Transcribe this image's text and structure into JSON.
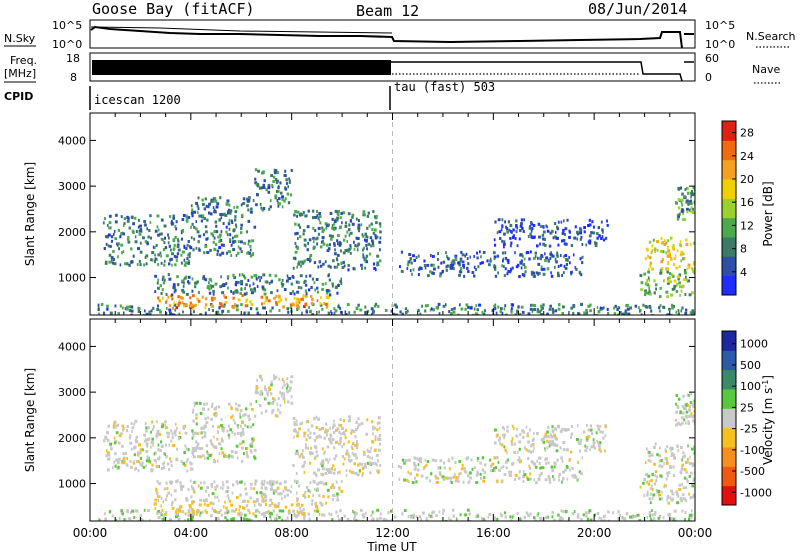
{
  "header": {
    "station": "Goose Bay (fitACF)",
    "beam": "Beam 12",
    "date": "08/Jun/2014"
  },
  "params": {
    "nsky_label": "N.Sky",
    "nsky_ticks": [
      "10^5",
      "10^0"
    ],
    "nsearch_label": "N.Search",
    "nsearch_ticks": [
      "10^5",
      "10^0"
    ],
    "freq_label": "Freq.",
    "freq_unit": "[MHz]",
    "freq_ticks": [
      "18",
      "8"
    ],
    "nave_label": "Nave",
    "nave_ticks": [
      "60",
      "0"
    ],
    "cpid_label": "CPID",
    "cpid_1": "icescan 1200",
    "cpid_2": "tau (fast) 503"
  },
  "x_axis": {
    "label": "Time UT",
    "ticks": [
      "00:00",
      "04:00",
      "08:00",
      "12:00",
      "16:00",
      "20:00",
      "00:00"
    ]
  },
  "colors": {
    "power": [
      "#1f2bff",
      "#2d4fa8",
      "#3a7a66",
      "#4caa4c",
      "#9bd12c",
      "#f0d000",
      "#f5a020",
      "#f06a10",
      "#e02010"
    ],
    "velocity": [
      "#e01010",
      "#f05a10",
      "#f59020",
      "#f5c020",
      "#c8c8c8",
      "#5ac83c",
      "#3a8a6a",
      "#2a5aa8",
      "#1d28a0"
    ]
  },
  "chart_data": [
    {
      "type": "heatmap",
      "name": "power",
      "ylabel": "Slant Range [km]",
      "xlabel": "",
      "y_ticks": [
        1000,
        2000,
        3000,
        4000
      ],
      "ylim": [
        180,
        4600
      ],
      "xlim": [
        0,
        24
      ],
      "colorbar": {
        "label": "Power [dB]",
        "ticks": [
          "4",
          "8",
          "12",
          "16",
          "20",
          "24",
          "28"
        ],
        "range": [
          0,
          30
        ]
      },
      "regions": [
        {
          "x": [
            0.3,
            24
          ],
          "y": [
            200,
            450
          ],
          "value": 8
        },
        {
          "x": [
            2.5,
            9.5
          ],
          "y": [
            350,
            650
          ],
          "value": 22
        },
        {
          "x": [
            2.5,
            10
          ],
          "y": [
            650,
            1100
          ],
          "value": 8
        },
        {
          "x": [
            0.5,
            4.0
          ],
          "y": [
            1300,
            2400
          ],
          "value": 8
        },
        {
          "x": [
            4.0,
            6.5
          ],
          "y": [
            1500,
            2800
          ],
          "value": 8
        },
        {
          "x": [
            6.5,
            8.0
          ],
          "y": [
            2500,
            3400
          ],
          "value": 8
        },
        {
          "x": [
            8.0,
            11.5
          ],
          "y": [
            1200,
            2500
          ],
          "value": 8
        },
        {
          "x": [
            12.2,
            19.5
          ],
          "y": [
            1050,
            1600
          ],
          "value": 6
        },
        {
          "x": [
            16,
            20.5
          ],
          "y": [
            1700,
            2300
          ],
          "value": 5
        },
        {
          "x": [
            22.0,
            24.0
          ],
          "y": [
            1200,
            1900
          ],
          "value": 18
        },
        {
          "x": [
            21.8,
            24.0
          ],
          "y": [
            600,
            1200
          ],
          "value": 12
        },
        {
          "x": [
            23.2,
            24.0
          ],
          "y": [
            2300,
            3000
          ],
          "value": 10
        }
      ]
    },
    {
      "type": "heatmap",
      "name": "velocity",
      "ylabel": "Slant Range [km]",
      "xlabel": "Time UT",
      "y_ticks": [
        1000,
        2000,
        3000,
        4000
      ],
      "ylim": [
        180,
        4600
      ],
      "xlim": [
        0,
        24
      ],
      "colorbar": {
        "label": "Velocity [m s^-1]",
        "ticks": [
          "1000",
          "500",
          "100",
          "25",
          "-25",
          "-100",
          "-500",
          "-1000"
        ],
        "range": [
          -1000,
          1000
        ]
      },
      "regions": [
        {
          "x": [
            0.3,
            24
          ],
          "y": [
            200,
            450
          ],
          "value": 60
        },
        {
          "x": [
            2.5,
            9.5
          ],
          "y": [
            350,
            650
          ],
          "value": -150
        },
        {
          "x": [
            2.5,
            10
          ],
          "y": [
            650,
            1100
          ],
          "value": 0
        },
        {
          "x": [
            0.5,
            4.0
          ],
          "y": [
            1300,
            2400
          ],
          "value": 0
        },
        {
          "x": [
            4.0,
            6.5
          ],
          "y": [
            1500,
            2800
          ],
          "value": 0
        },
        {
          "x": [
            6.5,
            8.0
          ],
          "y": [
            2500,
            3400
          ],
          "value": 0
        },
        {
          "x": [
            8.0,
            11.5
          ],
          "y": [
            1200,
            2500
          ],
          "value": -30
        },
        {
          "x": [
            12.2,
            19.5
          ],
          "y": [
            1050,
            1600
          ],
          "value": 0
        },
        {
          "x": [
            16,
            20.5
          ],
          "y": [
            1700,
            2300
          ],
          "value": 0
        },
        {
          "x": [
            22.0,
            24.0
          ],
          "y": [
            1200,
            1900
          ],
          "value": 0
        },
        {
          "x": [
            21.8,
            24.0
          ],
          "y": [
            600,
            1200
          ],
          "value": 0
        },
        {
          "x": [
            23.2,
            24.0
          ],
          "y": [
            2300,
            3000
          ],
          "value": 0
        }
      ]
    }
  ]
}
